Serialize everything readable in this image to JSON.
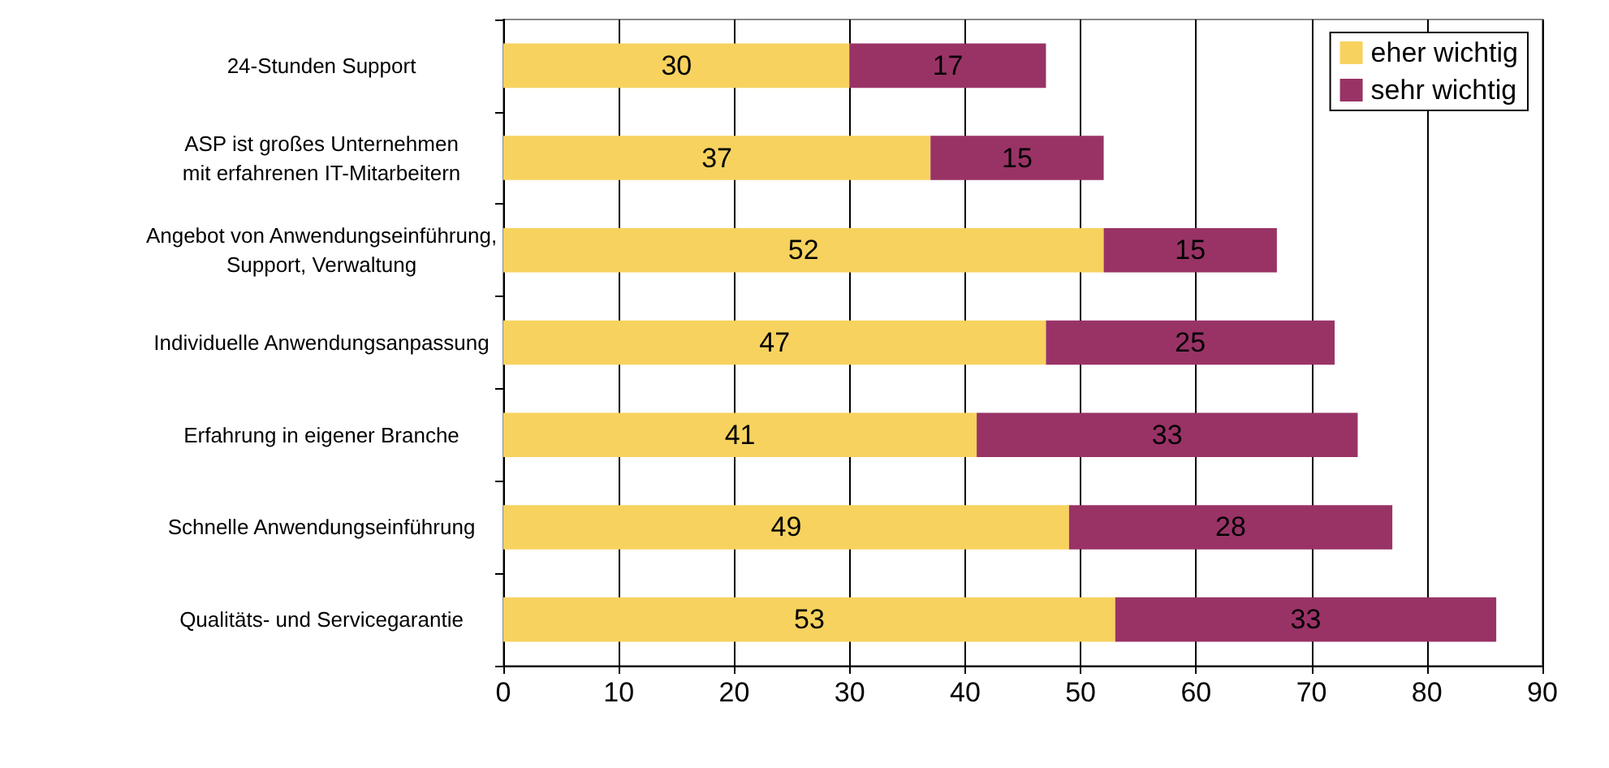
{
  "chart_data": {
    "type": "bar",
    "orientation": "horizontal",
    "stacked": true,
    "categories": [
      "24-Stunden Support",
      "ASP ist großes Unternehmen\nmit erfahrenen IT-Mitarbeitern",
      "Angebot von Anwendungseinführung,\nSupport, Verwaltung",
      "Individuelle Anwendungsanpassung",
      "Erfahrung in eigener Branche",
      "Schnelle Anwendungseinführung",
      "Qualitäts- und Servicegarantie"
    ],
    "series": [
      {
        "name": "eher wichtig",
        "color": "#f7d25e",
        "values": [
          30,
          37,
          52,
          47,
          41,
          49,
          53
        ]
      },
      {
        "name": "sehr wichtig",
        "color": "#993366",
        "values": [
          17,
          15,
          15,
          25,
          33,
          28,
          33
        ]
      }
    ],
    "xlim": [
      0,
      90
    ],
    "xticks": [
      0,
      10,
      20,
      30,
      40,
      50,
      60,
      70,
      80,
      90
    ],
    "grid": "x",
    "legend": "top right",
    "data_labels": true
  }
}
